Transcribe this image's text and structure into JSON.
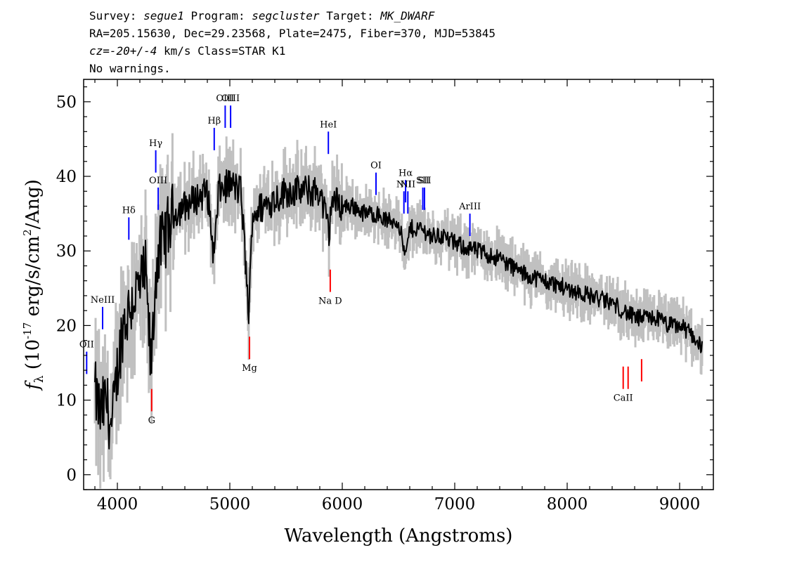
{
  "header": {
    "survey_label": "Survey:",
    "survey": "segue1",
    "program_label": "Program:",
    "program": "segcluster",
    "target_label": "Target:",
    "target": "MK_DWARF",
    "line2": "RA=205.15630, Dec=29.23568, Plate=2475, Fiber=370, MJD=53845",
    "cz_label": "cz=",
    "cz_value": "-20+/-4",
    "cz_rest": "km/s Class=STAR K1",
    "line4": "No warnings."
  },
  "chart_data": {
    "type": "line",
    "title": "",
    "xlabel": "Wavelength (Angstroms)",
    "ylabel_main": "f",
    "ylabel_sub": "λ",
    "ylabel_units_a": " (10",
    "ylabel_exp1": "-17",
    "ylabel_units_b": " erg/s/cm",
    "ylabel_exp2": "2",
    "ylabel_units_c": "/Ang)",
    "xlim": [
      3700,
      9300
    ],
    "ylim": [
      -2,
      53
    ],
    "xticks": [
      4000,
      5000,
      6000,
      7000,
      8000,
      9000
    ],
    "yticks": [
      0,
      10,
      20,
      30,
      40,
      50
    ],
    "grid": false,
    "colors": {
      "flux": "#000000",
      "noise": "#c0c0c0",
      "emission": "#0000ff",
      "absorption": "#ff0000"
    },
    "series": [
      {
        "x": [
          3800,
          3850,
          3900,
          3950,
          4000,
          4050,
          4100,
          4150,
          4200,
          4250,
          4300,
          4350,
          4400,
          4450,
          4500,
          4600,
          4700,
          4800,
          4860,
          4900,
          5000,
          5100,
          5170,
          5200,
          5300,
          5400,
          5500,
          5600,
          5700,
          5800,
          5890,
          5900,
          6000,
          6100,
          6200,
          6300,
          6400,
          6500,
          6563,
          6600,
          6700,
          6800,
          6900,
          7000,
          7200,
          7400,
          7600,
          7800,
          8000,
          8200,
          8400,
          8500,
          8600,
          8700,
          8800,
          8900,
          9000,
          9100,
          9200
        ],
        "y": [
          11,
          8,
          10,
          6,
          14,
          20,
          22,
          24,
          25,
          27,
          14,
          29,
          31,
          33,
          35,
          36,
          37,
          38,
          29,
          38,
          39,
          38,
          21,
          35,
          36,
          37,
          38,
          38,
          38,
          38,
          32,
          37,
          36,
          36,
          35,
          35,
          34,
          34,
          29,
          33,
          33,
          32,
          32,
          31,
          30,
          29,
          27,
          26,
          25,
          24,
          23,
          22,
          21,
          21,
          21,
          20,
          20,
          19,
          17
        ]
      }
    ],
    "lines": [
      {
        "label": "OII",
        "wave": 3727,
        "y": 16.5,
        "type": "emission"
      },
      {
        "label": "NeIII",
        "wave": 3869,
        "y": 22.5,
        "type": "emission"
      },
      {
        "label": "Hδ",
        "wave": 4102,
        "y": 34.5,
        "type": "emission"
      },
      {
        "label": "Hγ",
        "wave": 4341,
        "y": 43.5,
        "type": "emission"
      },
      {
        "label": "OIII",
        "wave": 4363,
        "y": 38.5,
        "type": "emission"
      },
      {
        "label": "Hβ",
        "wave": 4861,
        "y": 46.5,
        "type": "emission"
      },
      {
        "label": "OIII",
        "wave": 4959,
        "y": 49.5,
        "type": "emission"
      },
      {
        "label": "OIII",
        "wave": 5007,
        "y": 49.5,
        "type": "emission"
      },
      {
        "label": "HeI",
        "wave": 5876,
        "y": 46.0,
        "type": "emission"
      },
      {
        "label": "OI",
        "wave": 6300,
        "y": 40.5,
        "type": "emission"
      },
      {
        "label": "NII",
        "wave": 6548,
        "y": 38.0,
        "type": "emission"
      },
      {
        "label": "Hα",
        "wave": 6563,
        "y": 39.5,
        "type": "emission"
      },
      {
        "label": "NII",
        "wave": 6583,
        "y": 38.0,
        "type": "emission"
      },
      {
        "label": "SII",
        "wave": 6716,
        "y": 38.5,
        "type": "emission"
      },
      {
        "label": "SII",
        "wave": 6731,
        "y": 38.5,
        "type": "emission"
      },
      {
        "label": "ArIII",
        "wave": 7135,
        "y": 35.0,
        "type": "emission"
      },
      {
        "label": "G",
        "wave": 4305,
        "y": 11.5,
        "type": "absorption"
      },
      {
        "label": "Mg",
        "wave": 5175,
        "y": 18.5,
        "type": "absorption"
      },
      {
        "label": "Na D",
        "wave": 5893,
        "y": 27.5,
        "type": "absorption"
      },
      {
        "label": "CaII",
        "wave": 8498,
        "y": 14.5,
        "type": "absorption"
      },
      {
        "label": "",
        "wave": 8542,
        "y": 14.5,
        "type": "absorption"
      },
      {
        "label": "",
        "wave": 8662,
        "y": 15.5,
        "type": "absorption"
      }
    ]
  }
}
